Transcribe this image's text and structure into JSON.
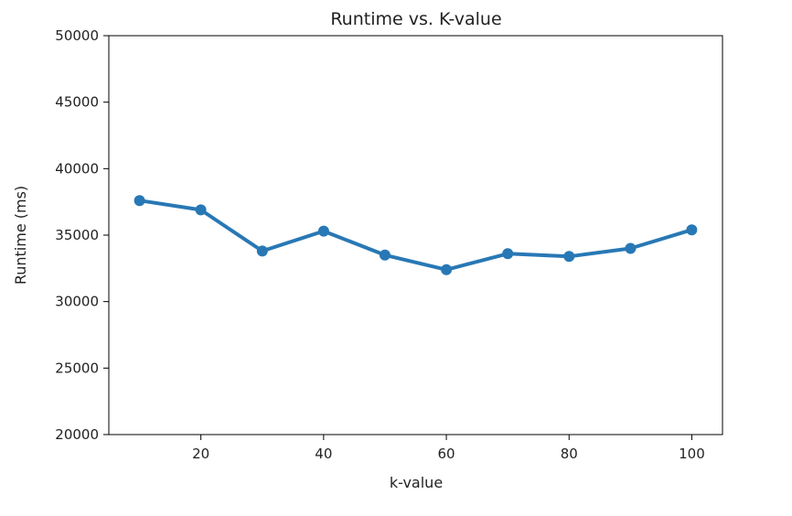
{
  "chart_data": {
    "type": "line",
    "title": "Runtime vs. K-value",
    "xlabel": "k-value",
    "ylabel": "Runtime (ms)",
    "xlim": [
      5,
      105
    ],
    "ylim": [
      20000,
      50000
    ],
    "x_ticks": [
      20,
      40,
      60,
      80,
      100
    ],
    "y_ticks": [
      20000,
      25000,
      30000,
      35000,
      40000,
      45000,
      50000
    ],
    "grid": false,
    "series": [
      {
        "color": "#2878b5",
        "x": [
          10,
          20,
          30,
          40,
          50,
          60,
          70,
          80,
          90,
          100
        ],
        "y": [
          37600,
          36900,
          33800,
          35300,
          33500,
          32400,
          33600,
          33400,
          34000,
          35400
        ]
      }
    ]
  }
}
